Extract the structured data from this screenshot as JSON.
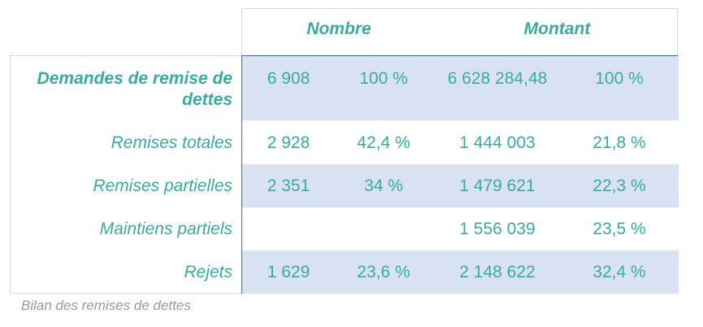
{
  "header": {
    "nombre": "Nombre",
    "montant": "Montant"
  },
  "rows": [
    {
      "label": "Demandes de remise de dettes",
      "nombre": "6 908",
      "nombre_pct": "100 %",
      "montant": "6 628 284,48",
      "montant_pct": "100 %"
    },
    {
      "label": "Remises totales",
      "nombre": "2 928",
      "nombre_pct": "42,4 %",
      "montant": "1 444 003",
      "montant_pct": "21,8 %"
    },
    {
      "label": "Remises partielles",
      "nombre": "2 351",
      "nombre_pct": "34 %",
      "montant": "1 479 621",
      "montant_pct": "22,3 %"
    },
    {
      "label": "Maintiens partiels",
      "nombre": "",
      "nombre_pct": "",
      "montant": "1 556 039",
      "montant_pct": "23,5 %"
    },
    {
      "label": "Rejets",
      "nombre": "1 629",
      "nombre_pct": "23,6 %",
      "montant": "2 148 622",
      "montant_pct": "32,4 %"
    }
  ],
  "caption": "Bilan des remises de dettes",
  "colors": {
    "text": "#3aab9c",
    "row_shade": "#d9e2f3",
    "divider": "#4a5fa8",
    "caption": "#9a9a9a"
  }
}
